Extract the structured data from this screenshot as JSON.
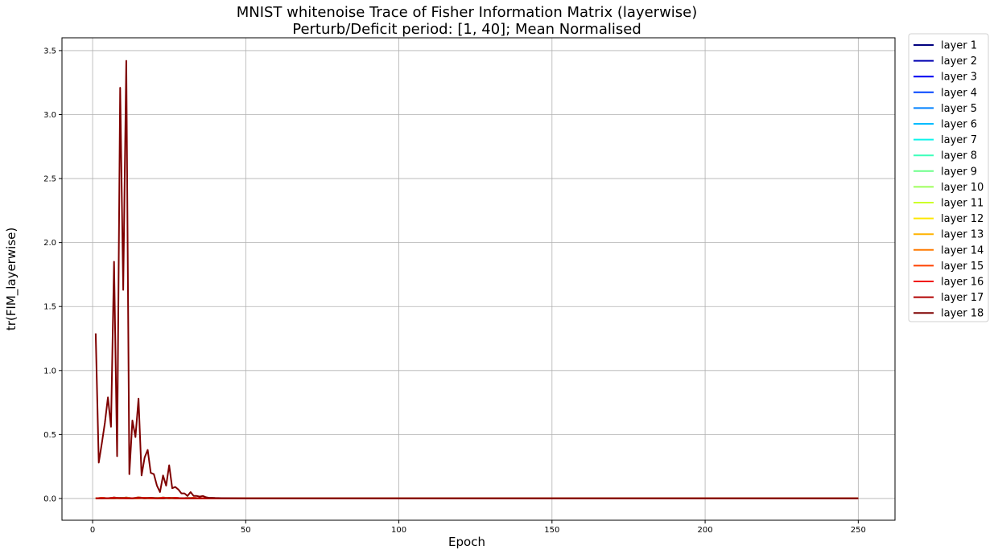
{
  "chart_data": {
    "type": "line",
    "title": "MNIST whitenoise Trace of Fisher Information Matrix (layerwise)",
    "subtitle": "Perturb/Deficit period: [1, 40]; Mean Normalised",
    "xlabel": "Epoch",
    "ylabel": "tr(FIM_layerwise)",
    "xlim": [
      -10,
      262
    ],
    "ylim": [
      -0.17,
      3.6
    ],
    "xticks": [
      0,
      50,
      100,
      150,
      200,
      250
    ],
    "yticks": [
      0.0,
      0.5,
      1.0,
      1.5,
      2.0,
      2.5,
      3.0,
      3.5
    ],
    "xtick_labels": [
      "0",
      "50",
      "100",
      "150",
      "200",
      "250"
    ],
    "ytick_labels": [
      "0.0",
      "0.5",
      "1.0",
      "1.5",
      "2.0",
      "2.5",
      "3.0",
      "3.5"
    ],
    "grid": true,
    "legend_position": "outside-right",
    "series": [
      {
        "name": "layer 1",
        "color": "#00007f"
      },
      {
        "name": "layer 2",
        "color": "#0000b2"
      },
      {
        "name": "layer 3",
        "color": "#0000f1"
      },
      {
        "name": "layer 4",
        "color": "#0044ff"
      },
      {
        "name": "layer 5",
        "color": "#0080ff"
      },
      {
        "name": "layer 6",
        "color": "#00bcff"
      },
      {
        "name": "layer 7",
        "color": "#0df4eb"
      },
      {
        "name": "layer 8",
        "color": "#3dffba"
      },
      {
        "name": "layer 9",
        "color": "#6dff8a"
      },
      {
        "name": "layer 10",
        "color": "#9dff5a"
      },
      {
        "name": "layer 11",
        "color": "#cdff29"
      },
      {
        "name": "layer 12",
        "color": "#fde700"
      },
      {
        "name": "layer 13",
        "color": "#ffb200"
      },
      {
        "name": "layer 14",
        "color": "#ff7a00"
      },
      {
        "name": "layer 15",
        "color": "#ff4200"
      },
      {
        "name": "layer 16",
        "color": "#f10800"
      },
      {
        "name": "layer 17",
        "color": "#b20000"
      },
      {
        "name": "layer 18",
        "color": "#7f0000",
        "x": [
          1,
          2,
          3,
          4,
          5,
          6,
          7,
          8,
          9,
          10,
          11,
          12,
          13,
          14,
          15,
          16,
          17,
          18,
          19,
          20,
          21,
          22,
          23,
          24,
          25,
          26,
          27,
          28,
          29,
          30,
          31,
          32,
          33,
          34,
          35,
          36,
          37,
          38,
          39,
          40,
          42,
          45,
          50,
          100,
          150,
          200,
          250
        ],
        "values": [
          1.29,
          0.28,
          0.43,
          0.59,
          0.79,
          0.56,
          1.85,
          0.33,
          3.21,
          1.63,
          3.42,
          0.19,
          0.61,
          0.48,
          0.78,
          0.18,
          0.32,
          0.38,
          0.2,
          0.19,
          0.1,
          0.05,
          0.18,
          0.1,
          0.26,
          0.08,
          0.09,
          0.07,
          0.04,
          0.04,
          0.02,
          0.05,
          0.02,
          0.02,
          0.015,
          0.02,
          0.01,
          0.005,
          0.005,
          0.004,
          0.003,
          0.002,
          0.001,
          0.001,
          0.001,
          0.001,
          0.001
        ]
      }
    ],
    "small_series_x": [
      1,
      3,
      5,
      7,
      9,
      11,
      13,
      15,
      17,
      19,
      21,
      23,
      25,
      27,
      29,
      31,
      33,
      35,
      37,
      39,
      41,
      43,
      45,
      50,
      100,
      150,
      200,
      250
    ],
    "small_series_values": [
      0.002,
      0.006,
      0.003,
      0.008,
      0.004,
      0.007,
      0.003,
      0.009,
      0.005,
      0.006,
      0.004,
      0.008,
      0.005,
      0.006,
      0.003,
      0.004,
      0.005,
      0.003,
      0.002,
      0.002,
      0.003,
      0.002,
      0.001,
      0.0,
      0.0,
      0.0,
      0.0,
      0.0
    ]
  }
}
